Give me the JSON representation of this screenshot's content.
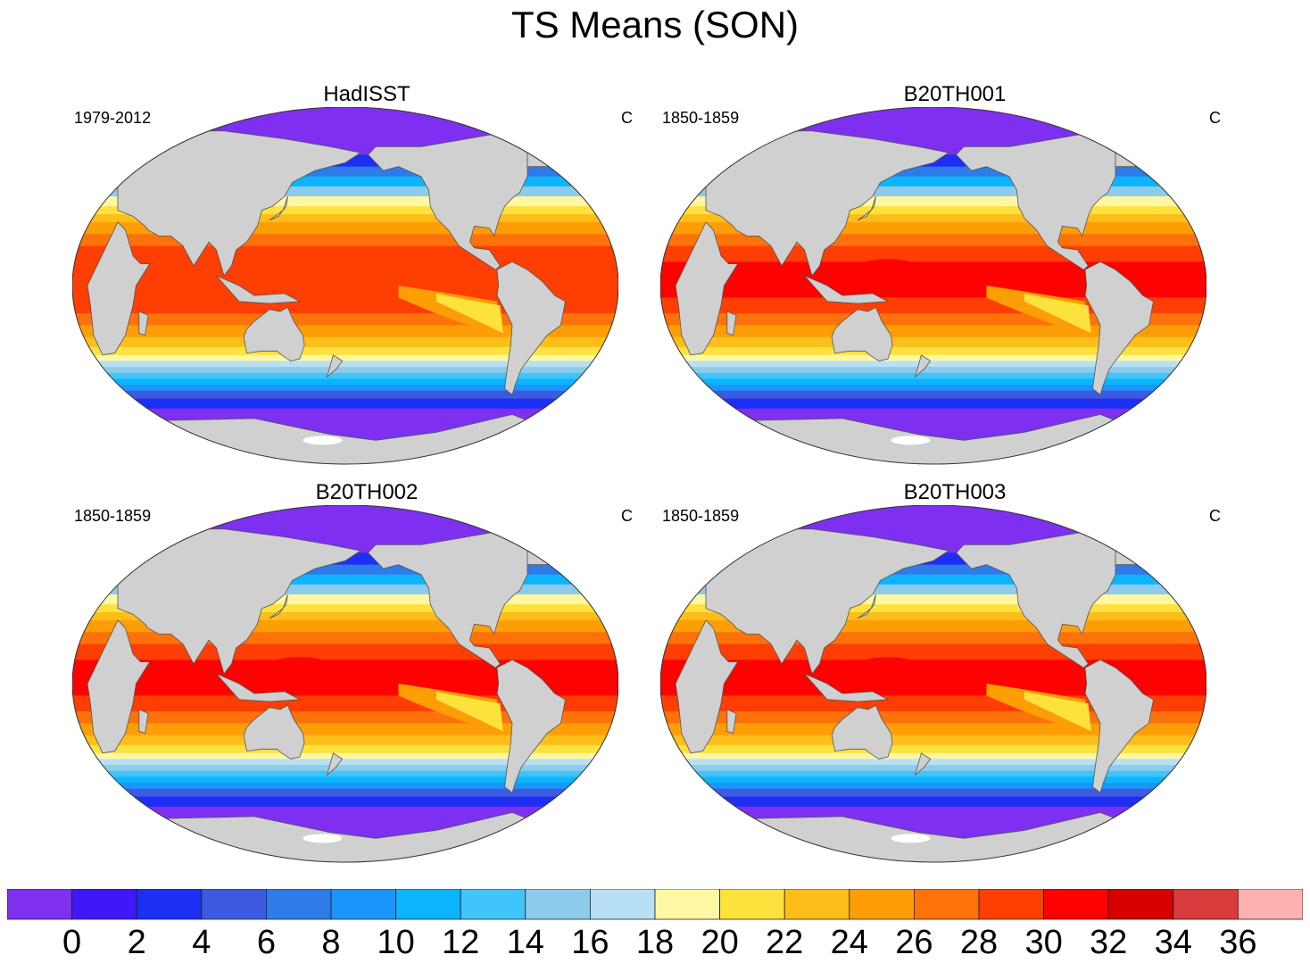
{
  "title": "TS Means (SON)",
  "panels": [
    {
      "name": "HadISST",
      "period": "1979-2012",
      "units": "C",
      "variant": 0
    },
    {
      "name": "B20TH001",
      "period": "1850-1859",
      "units": "C",
      "variant": 1
    },
    {
      "name": "B20TH002",
      "period": "1850-1859",
      "units": "C",
      "variant": 2
    },
    {
      "name": "B20TH003",
      "period": "1850-1859",
      "units": "C",
      "variant": 2
    }
  ],
  "colorbar": {
    "labels": [
      "0",
      "2",
      "4",
      "6",
      "8",
      "10",
      "12",
      "14",
      "16",
      "18",
      "20",
      "22",
      "24",
      "26",
      "28",
      "30",
      "32",
      "34",
      "36"
    ],
    "colors": [
      "#7f2ff0",
      "#3f17f8",
      "#1d2ff5",
      "#3d5ae0",
      "#2e7bea",
      "#1b95fa",
      "#0bb4fb",
      "#40c4f9",
      "#8ecbeb",
      "#b7e0f5",
      "#fff7a3",
      "#fde23d",
      "#fdbe1a",
      "#fe9e07",
      "#fe720a",
      "#fe3e02",
      "#fe0101",
      "#d70000",
      "#d83b3b",
      "#feb1b1"
    ],
    "land_color": "#d0d0d0"
  }
}
